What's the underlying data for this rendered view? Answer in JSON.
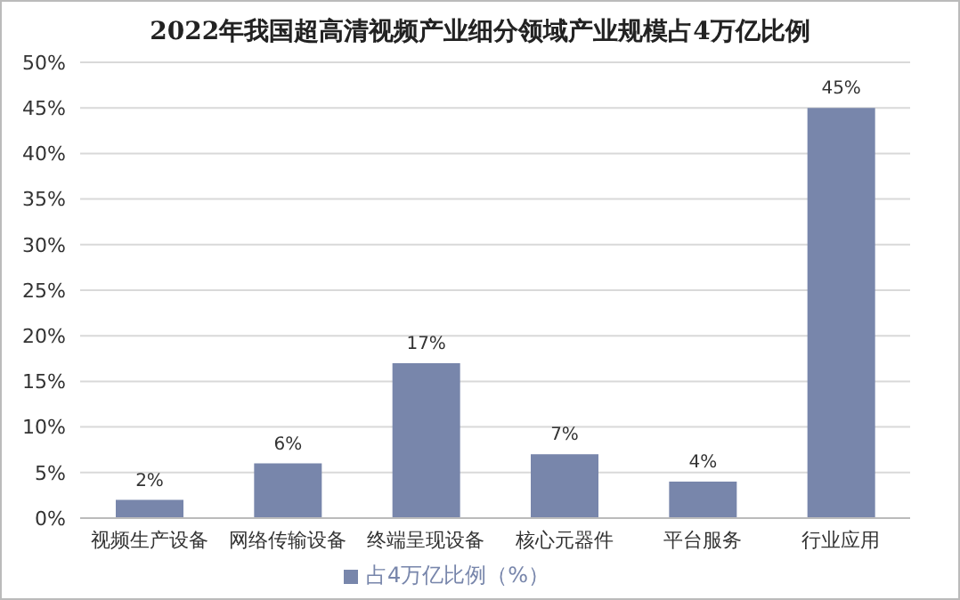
{
  "chart_data": {
    "type": "bar",
    "title": "2022年我国超高清视频产业细分领域产业规模占4万亿比例",
    "categories": [
      "视频生产设备",
      "网络传输设备",
      "终端呈现设备",
      "核心元器件",
      "平台服务",
      "行业应用"
    ],
    "series": [
      {
        "name": "占4万亿比例（%）",
        "color": "#7886ab",
        "values": [
          2,
          6,
          17,
          7,
          4,
          45
        ]
      }
    ],
    "value_labels": [
      "2%",
      "6%",
      "17%",
      "7%",
      "4%",
      "45%"
    ],
    "ylim": [
      0,
      50
    ],
    "yticks": [
      {
        "value": 0,
        "label": "0%"
      },
      {
        "value": 5,
        "label": "5%"
      },
      {
        "value": 10,
        "label": "10%"
      },
      {
        "value": 15,
        "label": "15%"
      },
      {
        "value": 20,
        "label": "20%"
      },
      {
        "value": 25,
        "label": "25%"
      },
      {
        "value": 30,
        "label": "30%"
      },
      {
        "value": 35,
        "label": "35%"
      },
      {
        "value": 40,
        "label": "40%"
      },
      {
        "value": 45,
        "label": "45%"
      },
      {
        "value": 50,
        "label": "50%"
      }
    ],
    "grid": "y",
    "legend": "bottom"
  }
}
